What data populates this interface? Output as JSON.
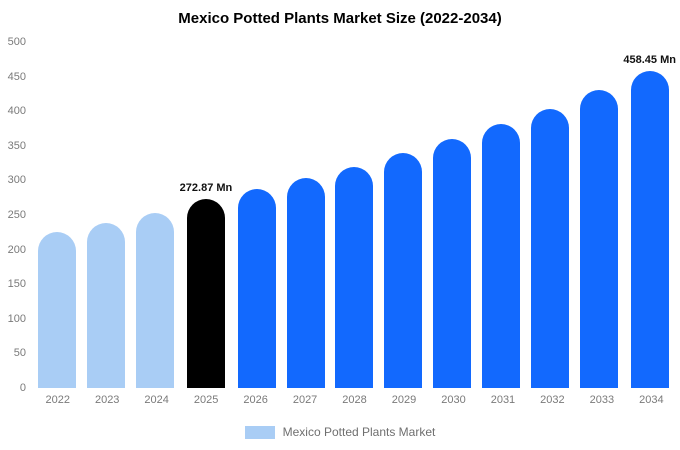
{
  "title": "Mexico Potted Plants Market Size (2022-2034)",
  "legend": {
    "label": "Mexico Potted Plants Market",
    "swatch_color": "#a9cdf5"
  },
  "colors": {
    "past_bar": "#a9cdf5",
    "highlight_bar": "#000000",
    "future_bar": "#1269fe",
    "axis_text": "#7a7a7a"
  },
  "chart_data": {
    "type": "bar",
    "title": "Mexico Potted Plants Market Size (2022-2034)",
    "xlabel": "",
    "ylabel": "",
    "ylim": [
      0,
      500
    ],
    "yticks": [
      0,
      50,
      100,
      150,
      200,
      250,
      300,
      350,
      400,
      450,
      500
    ],
    "grid": false,
    "legend_position": "bottom",
    "categories": [
      "2022",
      "2023",
      "2024",
      "2025",
      "2026",
      "2027",
      "2028",
      "2029",
      "2030",
      "2031",
      "2032",
      "2033",
      "2034"
    ],
    "values": [
      225,
      238,
      253,
      272.87,
      287,
      303,
      320,
      340,
      360,
      381,
      403,
      430,
      458.45
    ],
    "bar_colors": [
      "#a9cdf5",
      "#a9cdf5",
      "#a9cdf5",
      "#000000",
      "#1269fe",
      "#1269fe",
      "#1269fe",
      "#1269fe",
      "#1269fe",
      "#1269fe",
      "#1269fe",
      "#1269fe",
      "#1269fe"
    ],
    "annotations": [
      {
        "category": "2025",
        "text": "272.87 Mn"
      },
      {
        "category": "2034",
        "text": "458.45 Mn"
      }
    ]
  }
}
